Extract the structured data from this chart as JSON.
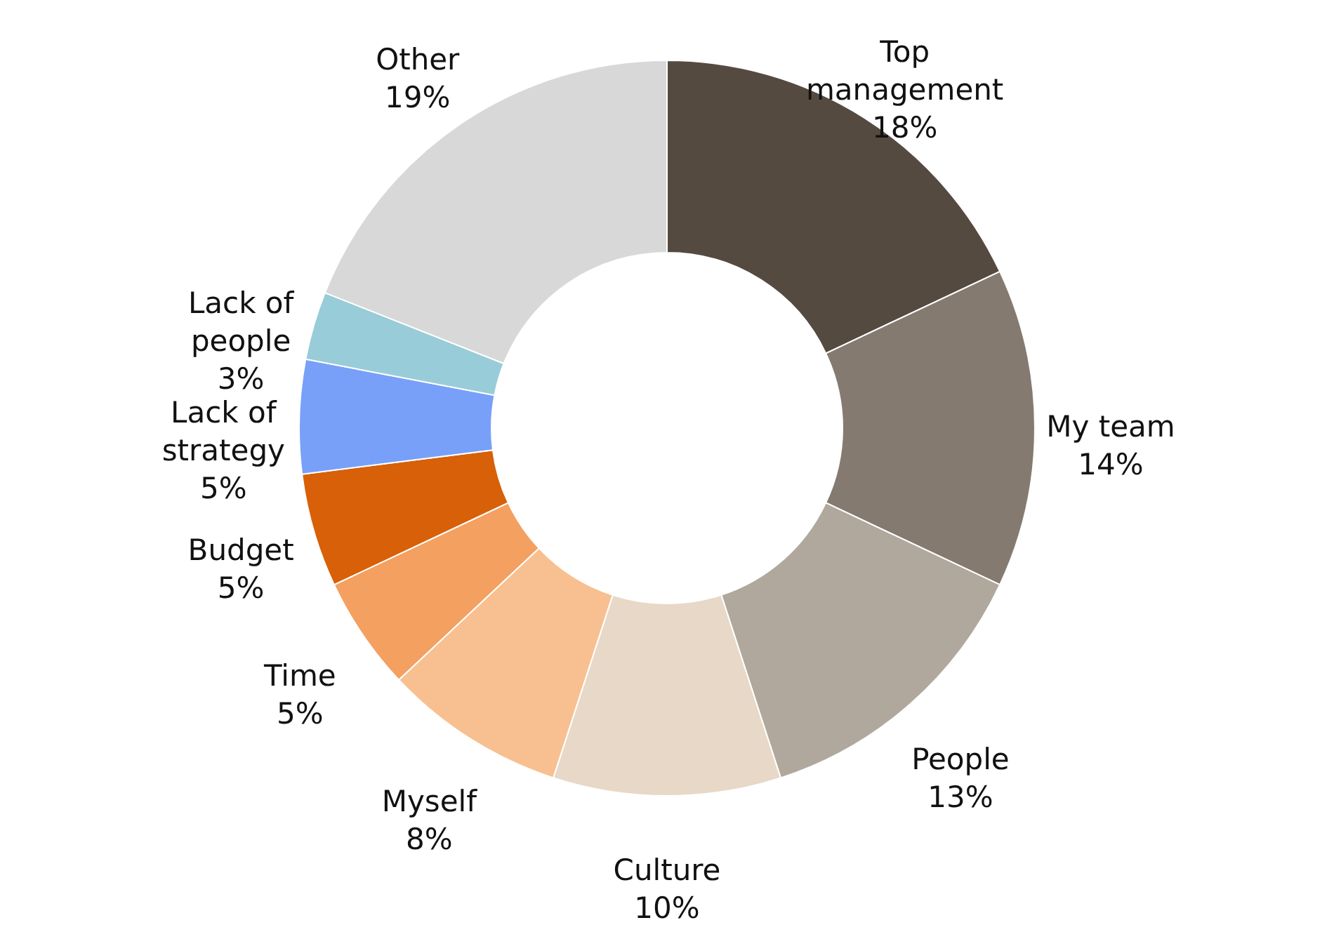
{
  "chart_data": {
    "type": "donut",
    "categories": [
      "Top management",
      "My team",
      "People",
      "Culture",
      "Myself",
      "Time",
      "Budget",
      "Lack of strategy",
      "Lack of people",
      "Other"
    ],
    "values": [
      18,
      14,
      13,
      10,
      8,
      5,
      5,
      5,
      3,
      19
    ],
    "value_labels": [
      "18%",
      "14%",
      "13%",
      "10%",
      "8%",
      "5%",
      "5%",
      "5%",
      "3%",
      "19%"
    ],
    "colors": [
      "#554a40",
      "#857a70",
      "#b0a89c",
      "#e8d8c8",
      "#f8c090",
      "#f4a060",
      "#d86008",
      "#78a0f8",
      "#98ccd8",
      "#d8d8d8"
    ]
  }
}
